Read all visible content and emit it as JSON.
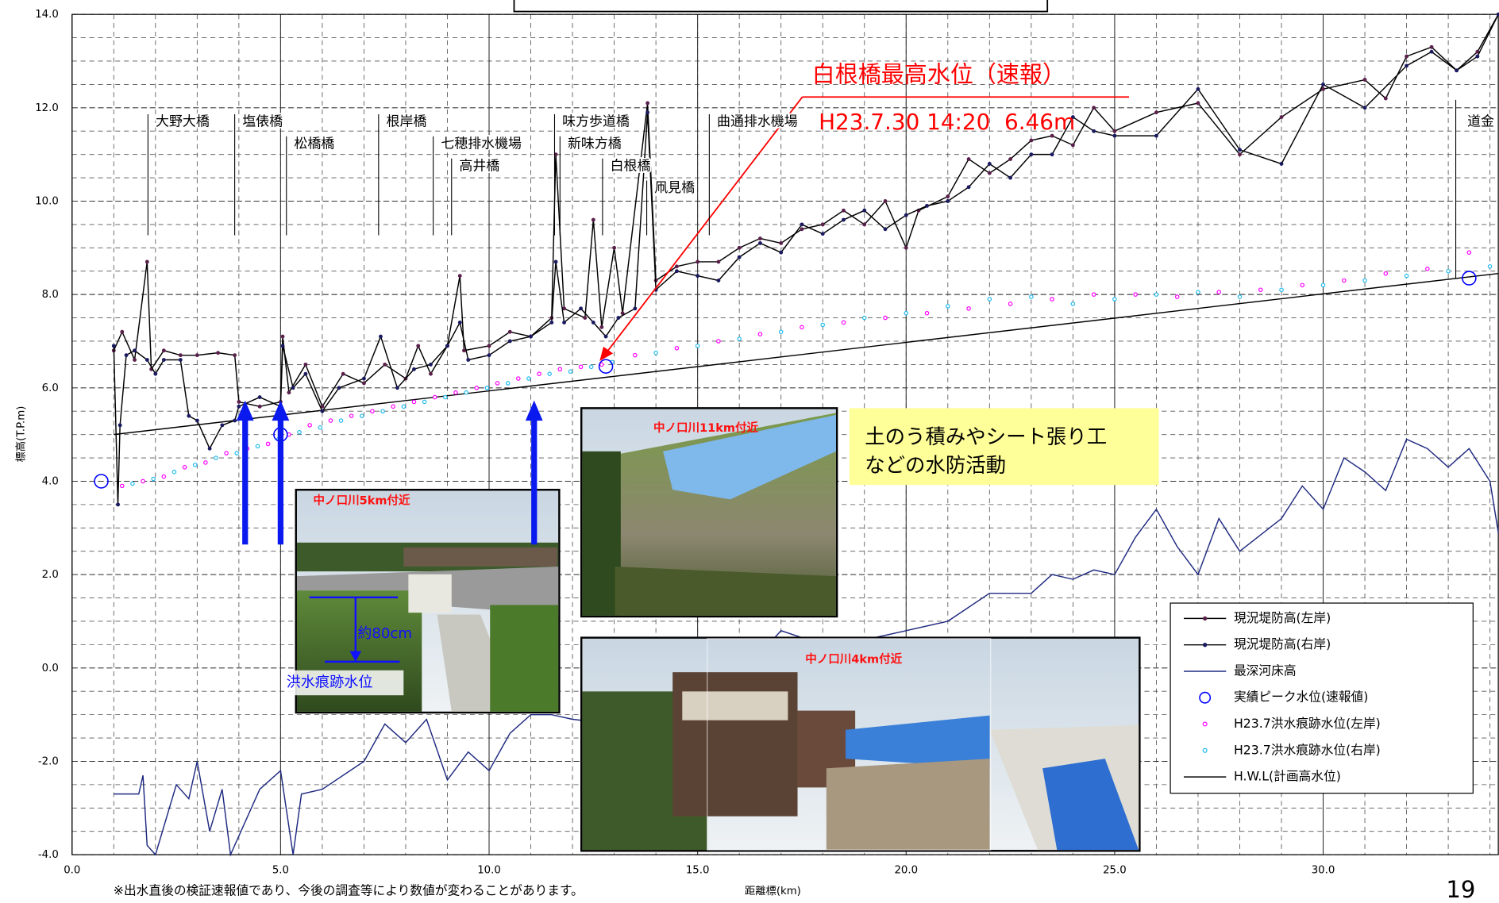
{
  "chart_data": {
    "type": "line",
    "y_label": "標高(T.P.m)",
    "x_label": "距離標(km)",
    "footnote": "※出水直後の検証速報値であり、今後の調査等により数値が変わることがあります。",
    "page_number": "19",
    "xlim": [
      0,
      34.2
    ],
    "ylim": [
      -4,
      14
    ],
    "xticks": [
      {
        "value": 0,
        "label": "0.0"
      },
      {
        "value": 5,
        "label": "5.0"
      },
      {
        "value": 10,
        "label": "10.0"
      },
      {
        "value": 15,
        "label": "15.0"
      },
      {
        "value": 20,
        "label": "20.0"
      },
      {
        "value": 25,
        "label": "25.0"
      },
      {
        "value": 30,
        "label": "30.0"
      }
    ],
    "yticks": [
      {
        "value": -4,
        "label": "-4.0"
      },
      {
        "value": -2,
        "label": "-2.0"
      },
      {
        "value": 0,
        "label": "0.0"
      },
      {
        "value": 2,
        "label": "2.0"
      },
      {
        "value": 4,
        "label": "4.0"
      },
      {
        "value": 6,
        "label": "6.0"
      },
      {
        "value": 8,
        "label": "8.0"
      },
      {
        "value": 10,
        "label": "10.0"
      },
      {
        "value": 12,
        "label": "12.0"
      },
      {
        "value": 14,
        "label": "14.0"
      }
    ],
    "grid": true,
    "legend": "lower-right",
    "series": [
      {
        "name": "現況堤防高(左岸)",
        "color": "#5a1f4a",
        "line": "#000000",
        "marker": "dot",
        "x": [
          1.0,
          1.2,
          1.5,
          1.8,
          1.9,
          2.2,
          2.6,
          3.0,
          3.5,
          3.9,
          4.0,
          4.5,
          5.0,
          5.05,
          5.2,
          5.6,
          6.0,
          6.5,
          7.0,
          7.5,
          8.0,
          8.3,
          8.6,
          9.0,
          9.3,
          9.4,
          10.0,
          10.5,
          11.0,
          11.5,
          11.6,
          11.8,
          12.3,
          12.5,
          12.7,
          13.0,
          13.2,
          13.8,
          14.0,
          14.5,
          15.0,
          15.5,
          16.0,
          16.5,
          17.0,
          17.5,
          18.0,
          18.5,
          19.0,
          19.5,
          20.0,
          20.3,
          21.0,
          21.5,
          22.0,
          22.5,
          23.0,
          23.5,
          24.0,
          24.5,
          25.0,
          26.0,
          27.0,
          28.0,
          29.0,
          30.0,
          31.0,
          31.5,
          32.0,
          32.6,
          33.2,
          33.7,
          34.2
        ],
        "values": [
          6.8,
          7.2,
          6.6,
          8.7,
          6.4,
          6.8,
          6.7,
          6.7,
          6.75,
          6.7,
          5.7,
          5.6,
          5.7,
          7.1,
          5.9,
          6.5,
          5.6,
          6.3,
          6.1,
          6.5,
          6.2,
          6.9,
          6.3,
          6.9,
          8.4,
          6.8,
          6.9,
          7.2,
          7.1,
          7.5,
          11.0,
          7.7,
          7.5,
          9.6,
          7.3,
          9.0,
          7.6,
          12.1,
          8.3,
          8.6,
          8.7,
          8.7,
          9.0,
          9.2,
          9.1,
          9.4,
          9.5,
          9.8,
          9.5,
          10.0,
          9.0,
          9.8,
          10.1,
          10.9,
          10.6,
          10.9,
          11.3,
          11.4,
          11.2,
          12.0,
          11.5,
          11.9,
          12.1,
          11.0,
          11.8,
          12.4,
          12.6,
          12.2,
          13.1,
          13.3,
          12.8,
          13.2,
          14.0
        ]
      },
      {
        "name": "現況堤防高(右岸)",
        "color": "#1a1a60",
        "line": "#000000",
        "marker": "dot",
        "x": [
          1.0,
          1.1,
          1.15,
          1.3,
          1.5,
          1.8,
          2.0,
          2.2,
          2.6,
          2.8,
          3.0,
          3.3,
          3.6,
          3.9,
          4.0,
          4.5,
          5.0,
          5.05,
          5.3,
          5.6,
          6.0,
          6.4,
          7.0,
          7.4,
          7.8,
          8.2,
          8.6,
          9.0,
          9.3,
          9.5,
          10.0,
          10.5,
          11.0,
          11.5,
          11.6,
          11.8,
          12.2,
          12.5,
          12.8,
          13.1,
          13.5,
          13.8,
          14.0,
          14.5,
          15.0,
          15.5,
          16.0,
          16.5,
          17.0,
          17.5,
          18.0,
          18.5,
          19.0,
          19.5,
          20.0,
          20.5,
          21.0,
          21.5,
          22.0,
          22.5,
          23.0,
          23.5,
          24.0,
          24.5,
          25.0,
          26.0,
          27.0,
          28.0,
          29.0,
          30.0,
          31.0,
          32.0,
          32.6,
          33.2,
          33.7,
          34.2
        ],
        "values": [
          6.9,
          3.5,
          5.2,
          6.7,
          6.8,
          6.6,
          6.3,
          6.6,
          6.6,
          5.4,
          5.3,
          4.7,
          5.2,
          5.3,
          5.6,
          5.8,
          5.6,
          6.9,
          6.0,
          6.3,
          5.5,
          6.0,
          6.2,
          7.1,
          6.0,
          6.4,
          6.5,
          6.9,
          7.4,
          6.6,
          6.7,
          7.0,
          7.1,
          7.4,
          8.7,
          7.4,
          7.7,
          7.4,
          7.1,
          7.5,
          7.7,
          11.9,
          8.1,
          8.5,
          8.4,
          8.3,
          8.8,
          9.1,
          8.9,
          9.5,
          9.3,
          9.6,
          9.8,
          9.4,
          9.7,
          9.9,
          10.0,
          10.3,
          10.8,
          10.5,
          11.0,
          11.0,
          11.8,
          11.5,
          11.4,
          11.4,
          12.4,
          11.1,
          10.8,
          12.5,
          12.0,
          12.9,
          13.2,
          12.8,
          13.1,
          14.0
        ]
      },
      {
        "name": "最深河床高",
        "color": "#1f2a80",
        "marker": "none",
        "x": [
          1.0,
          1.6,
          1.7,
          1.8,
          2.0,
          2.5,
          2.8,
          3.0,
          3.3,
          3.6,
          3.8,
          4.5,
          5.0,
          5.3,
          5.5,
          6.0,
          7.0,
          7.5,
          8.0,
          8.5,
          9.0,
          9.5,
          10.0,
          10.5,
          11.0,
          11.5,
          12.0,
          13.0,
          14.0,
          15.0,
          16.0,
          17.0,
          18.0,
          19.0,
          20.0,
          21.0,
          22.0,
          23.0,
          23.5,
          24.0,
          24.5,
          25.0,
          25.5,
          26.0,
          26.5,
          27.0,
          27.5,
          28.0,
          29.0,
          29.5,
          30.0,
          30.5,
          31.0,
          31.5,
          32.0,
          32.5,
          33.0,
          33.5,
          34.0,
          34.2
        ],
        "values": [
          -2.7,
          -2.7,
          -2.3,
          -3.8,
          -4.0,
          -2.5,
          -2.8,
          -2.0,
          -3.5,
          -2.6,
          -4.0,
          -2.6,
          -2.2,
          -4.0,
          -2.7,
          -2.6,
          -2.0,
          -1.2,
          -1.6,
          -1.1,
          -2.4,
          -1.8,
          -2.2,
          -1.4,
          -1.0,
          -1.0,
          -1.1,
          -1.2,
          -0.8,
          -0.5,
          -0.2,
          0.8,
          0.5,
          0.6,
          0.8,
          1.0,
          1.6,
          1.6,
          2.0,
          1.9,
          2.1,
          2.0,
          2.8,
          3.4,
          2.6,
          2.0,
          3.2,
          2.5,
          3.2,
          3.9,
          3.4,
          4.5,
          4.2,
          3.8,
          4.9,
          4.7,
          4.3,
          4.7,
          4.0,
          2.9
        ]
      },
      {
        "name": "実績ピーク水位(速報値)",
        "color": "#0000ff",
        "marker": "ring",
        "x": [
          0.7,
          5.0,
          12.8,
          33.5
        ],
        "values": [
          4.0,
          5.0,
          6.46,
          8.35
        ]
      },
      {
        "name": "H23.7洪水痕跡水位(左岸)",
        "color": "#ff00ff",
        "marker": "small-ring",
        "x": [
          1.2,
          1.7,
          2.2,
          2.7,
          3.2,
          3.7,
          4.2,
          4.7,
          5.2,
          5.7,
          6.2,
          6.7,
          7.2,
          7.7,
          8.2,
          8.7,
          9.2,
          9.7,
          10.2,
          10.7,
          11.2,
          11.7,
          12.2,
          12.7,
          13.5,
          14.5,
          15.5,
          16.5,
          17.5,
          18.5,
          19.5,
          20.5,
          21.5,
          22.5,
          23.5,
          24.5,
          25.5,
          26.5,
          27.5,
          28.5,
          29.5,
          30.5,
          31.5,
          32.5,
          33.5
        ],
        "values": [
          3.9,
          4.0,
          4.1,
          4.3,
          4.4,
          4.6,
          4.7,
          4.8,
          5.0,
          5.2,
          5.3,
          5.4,
          5.5,
          5.6,
          5.7,
          5.8,
          5.9,
          6.0,
          6.1,
          6.2,
          6.3,
          6.4,
          6.45,
          6.5,
          6.7,
          6.85,
          7.0,
          7.15,
          7.3,
          7.4,
          7.5,
          7.6,
          7.7,
          7.8,
          7.9,
          8.0,
          8.0,
          7.95,
          8.05,
          8.1,
          8.2,
          8.3,
          8.45,
          8.55,
          8.9
        ]
      },
      {
        "name": "H23.7洪水痕跡水位(右岸)",
        "color": "#22bbee",
        "marker": "small-ring",
        "x": [
          1.45,
          1.95,
          2.45,
          2.95,
          3.45,
          3.95,
          4.45,
          4.95,
          5.45,
          5.95,
          6.45,
          6.95,
          7.45,
          7.95,
          8.45,
          8.95,
          9.45,
          9.95,
          10.45,
          10.95,
          11.45,
          11.95,
          12.45,
          12.95,
          14.0,
          15.0,
          16.0,
          17.0,
          18.0,
          19.0,
          20.0,
          21.0,
          22.0,
          23.0,
          24.0,
          25.0,
          26.0,
          27.0,
          28.0,
          29.0,
          30.0,
          31.0,
          32.0,
          33.0,
          34.0
        ],
        "values": [
          3.95,
          4.05,
          4.2,
          4.35,
          4.5,
          4.6,
          4.75,
          4.9,
          5.05,
          5.15,
          5.3,
          5.4,
          5.5,
          5.6,
          5.7,
          5.8,
          5.9,
          6.0,
          6.1,
          6.2,
          6.3,
          6.35,
          6.45,
          6.55,
          6.75,
          6.9,
          7.05,
          7.2,
          7.35,
          7.5,
          7.6,
          7.75,
          7.9,
          7.95,
          7.8,
          7.9,
          8.0,
          8.05,
          7.95,
          8.1,
          8.2,
          8.3,
          8.4,
          8.5,
          8.6
        ]
      },
      {
        "name": "H.W.L(計画高水位)",
        "color": "#000000",
        "marker": "none",
        "x": [
          1.0,
          34.2
        ],
        "values": [
          5.0,
          8.45
        ]
      }
    ],
    "bridges": [
      {
        "label": "大野大橋",
        "x": 1.82
      },
      {
        "label": "塩俵橋",
        "x": 3.9
      },
      {
        "label": "松橋橋",
        "x": 5.14
      },
      {
        "label": "根岸橋",
        "x": 7.35
      },
      {
        "label": "七穂排水機場",
        "x": 8.66
      },
      {
        "label": "高井橋",
        "x": 9.1
      },
      {
        "label": "味方歩道橋",
        "x": 11.57
      },
      {
        "label": "新味方橋",
        "x": 11.7
      },
      {
        "label": "白根橋",
        "x": 12.72
      },
      {
        "label": "凧見橋",
        "x": 13.78
      },
      {
        "label": "曲通排水機場",
        "x": 15.28
      },
      {
        "label": "道金",
        "x": 33.18
      }
    ],
    "peak_annotation": {
      "title": "白根橋最高水位（速報）",
      "detail": "H23.7.30 14:20  6.46m"
    },
    "callout": [
      "土のう積みやシート張り工",
      "などの水防活動"
    ],
    "photos": [
      {
        "caption": "中ノ口川5km付近",
        "depth": "約80cm",
        "mark": "洪水痕跡水位"
      },
      {
        "caption": "中ノ口川11km付近"
      },
      {
        "caption": "中ノ口川4km付近"
      }
    ]
  }
}
